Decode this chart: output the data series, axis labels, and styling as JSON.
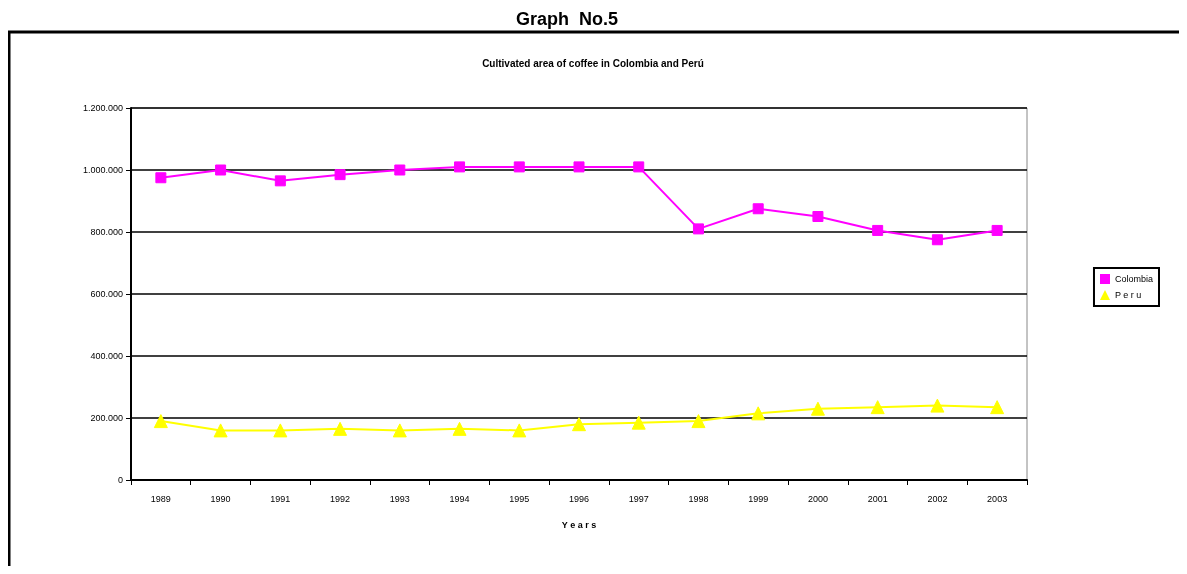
{
  "chart_data": {
    "type": "line",
    "title": "Cultivated area of coffee in Colombia and Perú",
    "xlabel": "Y e a r s",
    "annotations": [
      "Graph  No.5"
    ],
    "categories": [
      "1989",
      "1990",
      "1991",
      "1992",
      "1993",
      "1994",
      "1995",
      "1996",
      "1997",
      "1998",
      "1999",
      "2000",
      "2001",
      "2002",
      "2003"
    ],
    "series": [
      {
        "name": "Colombia",
        "color": "#ff00ff",
        "marker": "square",
        "values": [
          975000,
          1000000,
          965000,
          985000,
          1000000,
          1010000,
          1010000,
          1010000,
          1010000,
          810000,
          875000,
          850000,
          805000,
          775000,
          805000
        ]
      },
      {
        "name": "P e r u",
        "color": "#ffff00",
        "marker": "triangle",
        "values": [
          190000,
          160000,
          160000,
          165000,
          160000,
          165000,
          160000,
          180000,
          185000,
          190000,
          215000,
          230000,
          235000,
          240000,
          235000
        ]
      }
    ],
    "ylim": [
      0,
      1200000
    ],
    "yticks": [
      {
        "value": 0,
        "label": "0"
      },
      {
        "value": 200000,
        "label": "200.000"
      },
      {
        "value": 400000,
        "label": "400.000"
      },
      {
        "value": 600000,
        "label": "600.000"
      },
      {
        "value": 800000,
        "label": "800.000"
      },
      {
        "value": 1000000,
        "label": "1.000.000"
      },
      {
        "value": 1200000,
        "label": "1.200.000"
      }
    ],
    "grid": "y",
    "legend": "right"
  }
}
